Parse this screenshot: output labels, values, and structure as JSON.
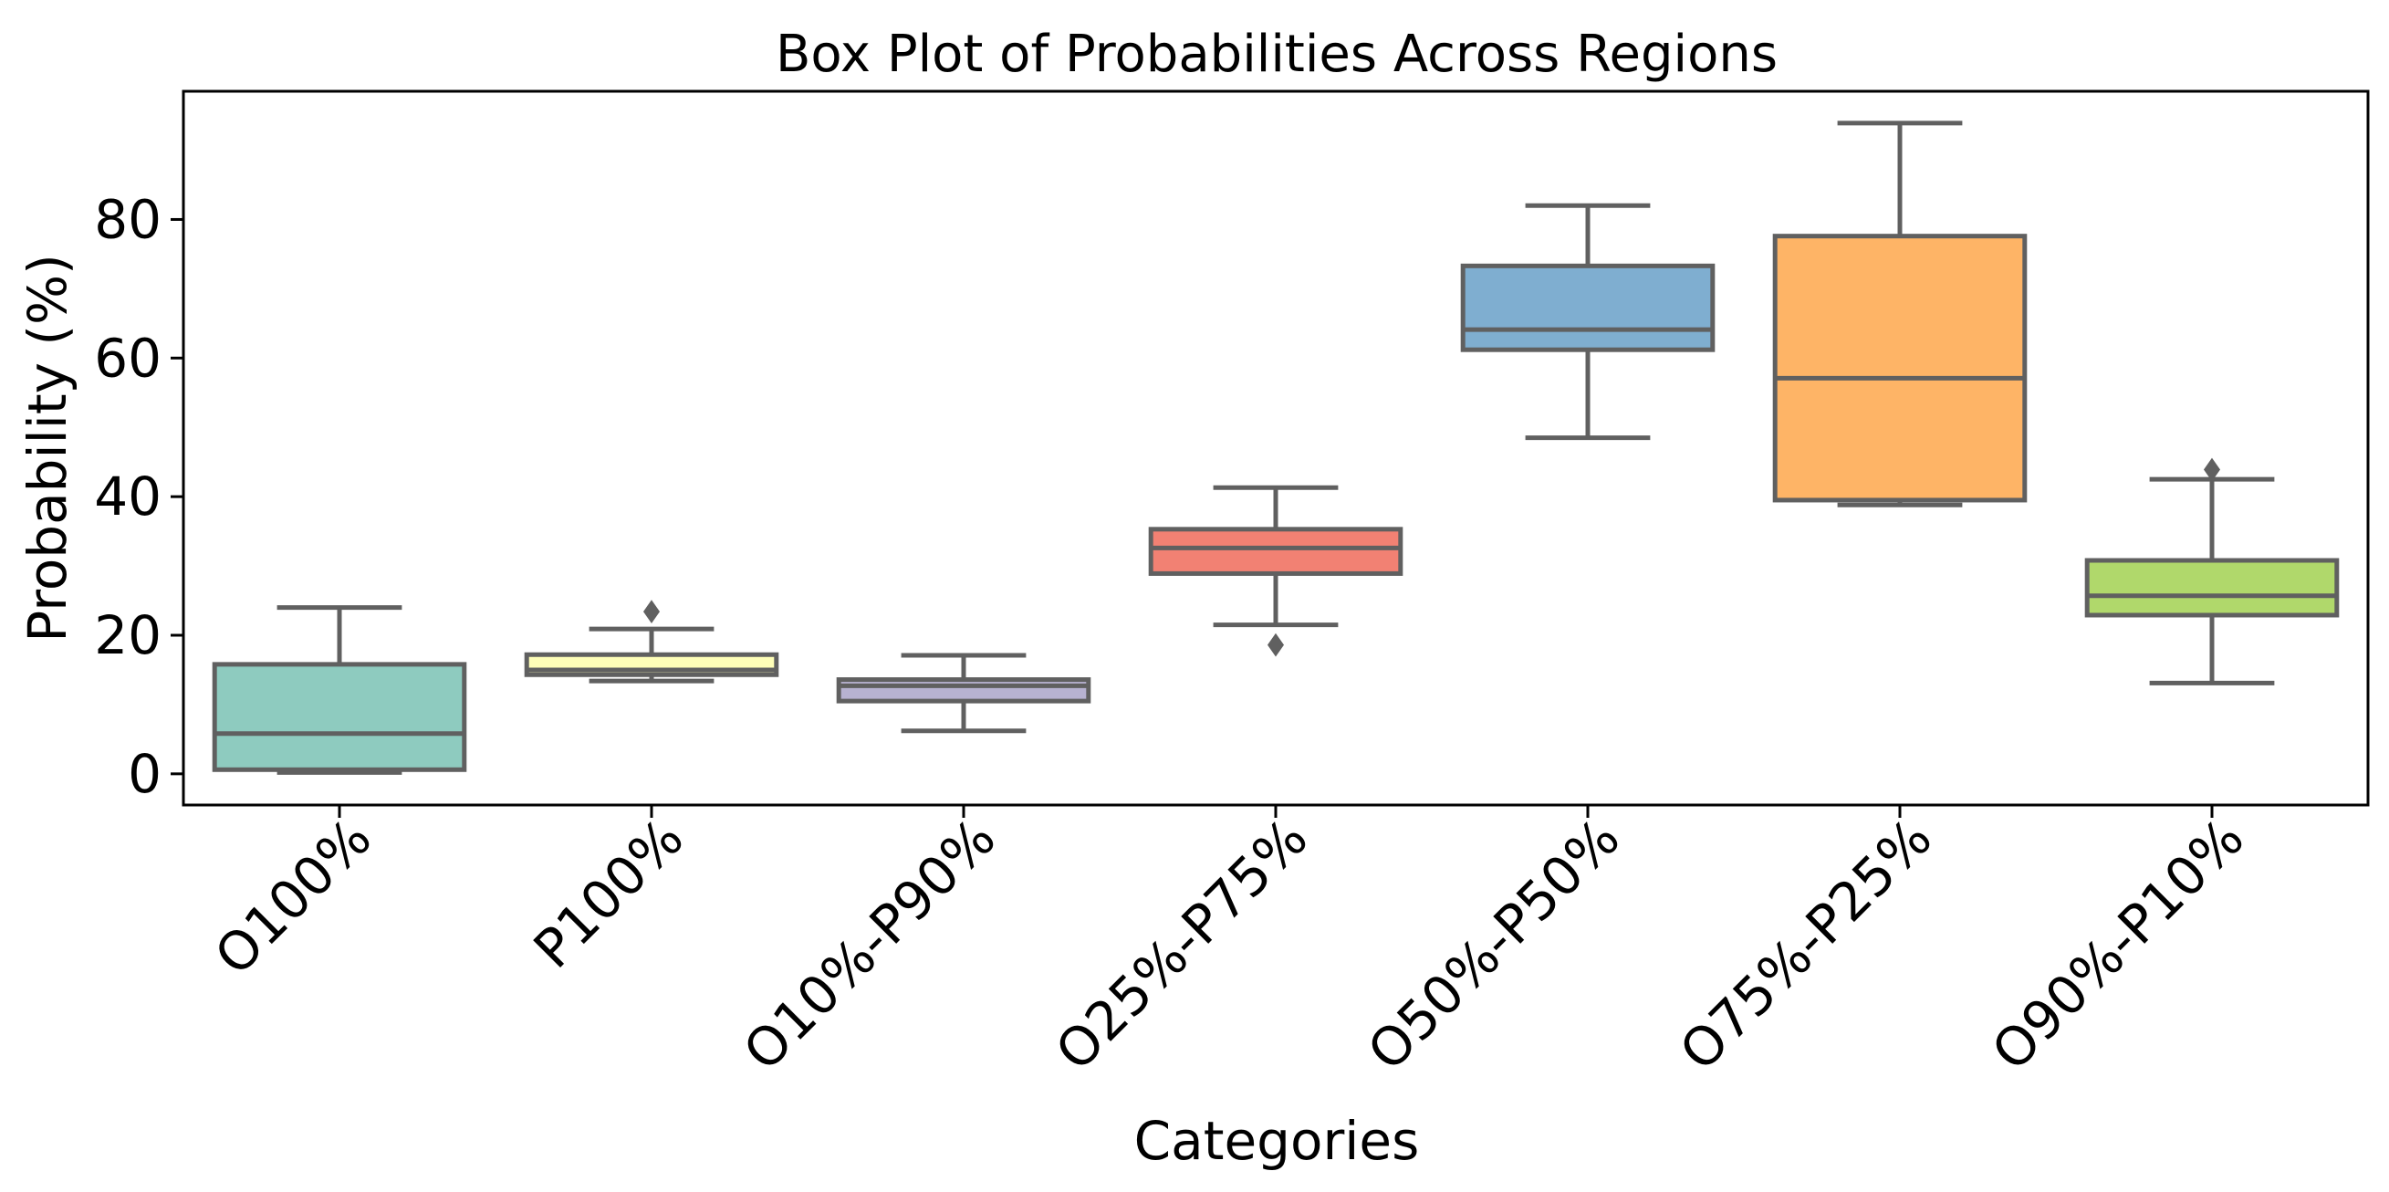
{
  "chart_data": {
    "type": "box",
    "title": "Box Plot of Probabilities Across Regions",
    "xlabel": "Categories",
    "ylabel": "Probability (%)",
    "ylim": [
      -4.5,
      98.5
    ],
    "yticks": [
      0,
      20,
      40,
      60,
      80
    ],
    "grid": false,
    "legend": "none",
    "categories": [
      "O100%",
      "P100%",
      "O10%-P90%",
      "O25%-P75%",
      "O50%-P50%",
      "O75%-P25%",
      "O90%-P10%"
    ],
    "boxes": [
      {
        "category": "O100%",
        "whisker_low": 0.2,
        "q1": 0.6,
        "median": 5.8,
        "q3": 15.8,
        "whisker_high": 24.0,
        "outliers": [],
        "color": "#8ecbbf"
      },
      {
        "category": "P100%",
        "whisker_low": 13.4,
        "q1": 14.3,
        "median": 15.0,
        "q3": 17.2,
        "whisker_high": 20.9,
        "outliers": [
          23.4
        ],
        "color": "#fefeb8"
      },
      {
        "category": "O10%-P90%",
        "whisker_low": 6.2,
        "q1": 10.5,
        "median": 12.7,
        "q3": 13.6,
        "whisker_high": 17.1,
        "outliers": [],
        "color": "#b7b2d1"
      },
      {
        "category": "O25%-P75%",
        "whisker_low": 21.5,
        "q1": 28.9,
        "median": 32.6,
        "q3": 35.3,
        "whisker_high": 41.3,
        "outliers": [
          18.6
        ],
        "color": "#f28173"
      },
      {
        "category": "O50%-P50%",
        "whisker_low": 48.5,
        "q1": 61.2,
        "median": 64.1,
        "q3": 73.3,
        "whisker_high": 82.0,
        "outliers": [],
        "color": "#7faed0"
      },
      {
        "category": "O75%-P25%",
        "whisker_low": 38.8,
        "q1": 39.5,
        "median": 57.1,
        "q3": 77.6,
        "whisker_high": 93.9,
        "outliers": [],
        "color": "#feb466"
      },
      {
        "category": "O90%-P10%",
        "whisker_low": 13.1,
        "q1": 22.9,
        "median": 25.7,
        "q3": 30.8,
        "whisker_high": 42.5,
        "outliers": [
          43.9
        ],
        "color": "#b0d86b"
      }
    ]
  }
}
